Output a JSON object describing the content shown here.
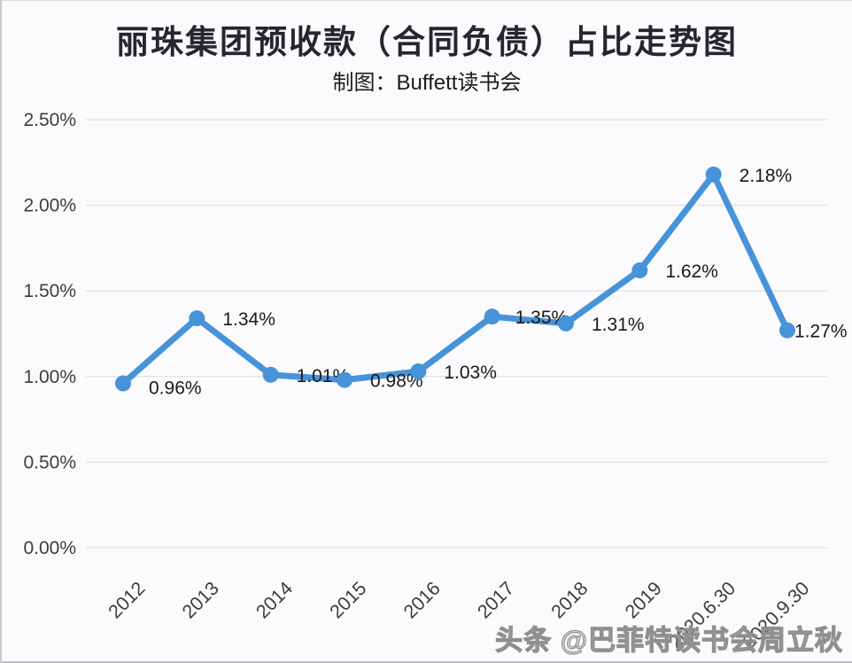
{
  "page": {
    "background": "#fbfafc"
  },
  "header": {
    "title": "丽珠集团预收款（合同负债）占比走势图",
    "subtitle": "制图：Buffett读书会"
  },
  "watermark": {
    "text": "头条 @巴菲特读书会周立秋"
  },
  "chart_data": {
    "type": "line",
    "title": "丽珠集团预收款（合同负债）占比走势图",
    "subtitle": "制图：Buffett读书会",
    "categories": [
      "2012",
      "2013",
      "2014",
      "2015",
      "2016",
      "2017",
      "2018",
      "2019",
      "2020.6.30",
      "2020.9.30"
    ],
    "values": [
      0.96,
      1.34,
      1.01,
      0.98,
      1.03,
      1.35,
      1.31,
      1.62,
      2.18,
      1.27
    ],
    "data_labels": [
      "0.96%",
      "1.34%",
      "1.01%",
      "0.98%",
      "1.03%",
      "1.35%",
      "1.31%",
      "1.62%",
      "2.18%",
      "1.27%"
    ],
    "xlabel": "",
    "ylabel": "",
    "ylim": [
      0,
      2.5
    ],
    "y_tick_step": 0.5,
    "y_tick_labels": [
      "0.00%",
      "0.50%",
      "1.00%",
      "1.50%",
      "2.00%",
      "2.50%"
    ],
    "grid": true,
    "legend_position": "none",
    "line_color": "#4793d9",
    "marker": "circle",
    "grid_color": "#d9d9d9",
    "axis_text_color": "#3d3d3d",
    "label_text_color": "#1a1a1a"
  }
}
